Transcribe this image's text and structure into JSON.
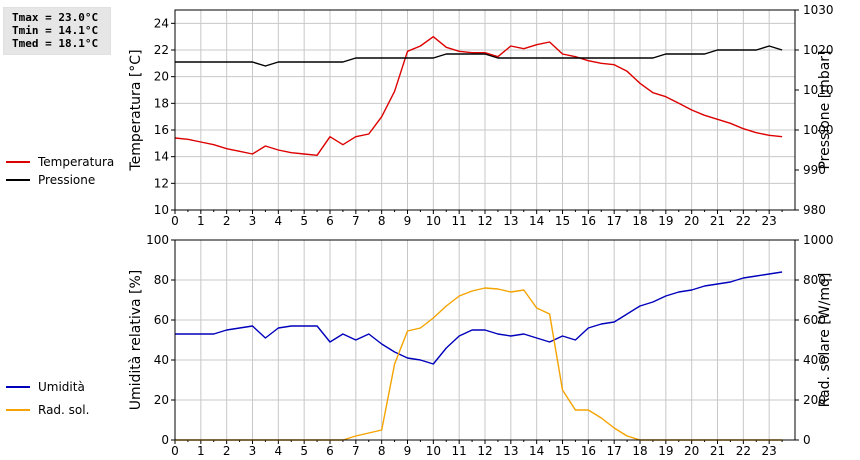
{
  "stats": {
    "tmax": "Tmax = 23.0°C",
    "tmin": "Tmin = 14.1°C",
    "tmed": "Tmed = 18.1°C"
  },
  "colors": {
    "temperatura": "#dd0000",
    "pressione": "#000000",
    "umidita": "#0000bb",
    "radiazione": "#f5a300",
    "grid": "#c8c8c8"
  },
  "chart_data": [
    {
      "type": "line",
      "x_ticks": [
        "0",
        "1",
        "2",
        "3",
        "4",
        "5",
        "6",
        "7",
        "8",
        "9",
        "10",
        "11",
        "12",
        "13",
        "14",
        "15",
        "16",
        "17",
        "18",
        "19",
        "20",
        "21",
        "22",
        "23"
      ],
      "xlim": [
        0,
        24
      ],
      "ylabel_left": "Temperatura [°C]",
      "ylabel_right": "Pressione [mbar]",
      "ylim_left": [
        10,
        25
      ],
      "ylim_right": [
        980,
        1030
      ],
      "yticks_left": [
        "10",
        "12",
        "14",
        "16",
        "18",
        "20",
        "22",
        "24"
      ],
      "yticks_right": [
        "980",
        "990",
        "1000",
        "1010",
        "1020",
        "1030"
      ],
      "grid": true,
      "legend_position": "left",
      "series": [
        {
          "name": "Temperatura",
          "axis": "left",
          "x": [
            0,
            0.5,
            1,
            1.5,
            2,
            2.5,
            3,
            3.5,
            4,
            4.5,
            5,
            5.5,
            6,
            6.5,
            7,
            7.5,
            8,
            8.5,
            9,
            9.5,
            10,
            10.5,
            11,
            11.5,
            12,
            12.5,
            13,
            13.5,
            14,
            14.5,
            15,
            15.5,
            16,
            16.5,
            17,
            17.5,
            18,
            18.5,
            19,
            19.5,
            20,
            20.5,
            21,
            21.5,
            22,
            22.5,
            23,
            23.5
          ],
          "y": [
            15.4,
            15.3,
            15.1,
            14.9,
            14.6,
            14.4,
            14.2,
            14.8,
            14.5,
            14.3,
            14.2,
            14.1,
            15.5,
            14.9,
            15.5,
            15.7,
            17.0,
            18.9,
            21.9,
            22.3,
            23.0,
            22.2,
            21.9,
            21.8,
            21.8,
            21.5,
            22.3,
            22.1,
            22.4,
            22.6,
            21.7,
            21.5,
            21.2,
            21.0,
            20.9,
            20.4,
            19.5,
            18.8,
            18.5,
            18.0,
            17.5,
            17.1,
            16.8,
            16.5,
            16.1,
            15.8,
            15.6,
            15.5
          ]
        },
        {
          "name": "Pressione",
          "axis": "right",
          "x": [
            0,
            0.5,
            1,
            1.5,
            2,
            2.5,
            3,
            3.5,
            4,
            4.5,
            5,
            5.5,
            6,
            6.5,
            7,
            7.5,
            8,
            8.5,
            9,
            9.5,
            10,
            10.5,
            11,
            11.5,
            12,
            12.5,
            13,
            13.5,
            14,
            14.5,
            15,
            15.5,
            16,
            16.5,
            17,
            17.5,
            18,
            18.5,
            19,
            19.5,
            20,
            20.5,
            21,
            21.5,
            22,
            22.5,
            23,
            23.5
          ],
          "y": [
            1017,
            1017,
            1017,
            1017,
            1017,
            1017,
            1017,
            1016,
            1017,
            1017,
            1017,
            1017,
            1017,
            1017,
            1018,
            1018,
            1018,
            1018,
            1018,
            1018,
            1018,
            1019,
            1019,
            1019,
            1019,
            1018,
            1018,
            1018,
            1018,
            1018,
            1018,
            1018,
            1018,
            1018,
            1018,
            1018,
            1018,
            1018,
            1019,
            1019,
            1019,
            1019,
            1020,
            1020,
            1020,
            1020,
            1021,
            1020
          ]
        }
      ]
    },
    {
      "type": "line",
      "x_ticks": [
        "0",
        "1",
        "2",
        "3",
        "4",
        "5",
        "6",
        "7",
        "8",
        "9",
        "10",
        "11",
        "12",
        "13",
        "14",
        "15",
        "16",
        "17",
        "18",
        "19",
        "20",
        "21",
        "22",
        "23"
      ],
      "xlim": [
        0,
        24
      ],
      "ylabel_left": "Umidità relativa [%]",
      "ylabel_right": "Rad. solare [W/mq]",
      "ylim_left": [
        0,
        100
      ],
      "ylim_right": [
        0,
        1000
      ],
      "yticks_left": [
        "0",
        "20",
        "40",
        "60",
        "80",
        "100"
      ],
      "yticks_right": [
        "0",
        "200",
        "400",
        "600",
        "800",
        "1000"
      ],
      "grid": true,
      "legend_position": "left",
      "series": [
        {
          "name": "Umidità",
          "axis": "left",
          "x": [
            0,
            0.5,
            1,
            1.5,
            2,
            2.5,
            3,
            3.5,
            4,
            4.5,
            5,
            5.5,
            6,
            6.5,
            7,
            7.5,
            8,
            8.5,
            9,
            9.5,
            10,
            10.5,
            11,
            11.5,
            12,
            12.5,
            13,
            13.5,
            14,
            14.5,
            15,
            15.5,
            16,
            16.5,
            17,
            17.5,
            18,
            18.5,
            19,
            19.5,
            20,
            20.5,
            21,
            21.5,
            22,
            22.5,
            23,
            23.5
          ],
          "y": [
            53,
            53,
            53,
            53,
            55,
            56,
            57,
            51,
            56,
            57,
            57,
            57,
            49,
            53,
            50,
            53,
            48,
            44,
            41,
            40,
            38,
            46,
            52,
            55,
            55,
            53,
            52,
            53,
            51,
            49,
            52,
            50,
            56,
            58,
            59,
            63,
            67,
            69,
            72,
            74,
            75,
            77,
            78,
            79,
            81,
            82,
            83,
            84
          ]
        },
        {
          "name": "Rad. sol.",
          "axis": "right",
          "x": [
            0,
            0.5,
            1,
            1.5,
            2,
            2.5,
            3,
            3.5,
            4,
            4.5,
            5,
            5.5,
            6,
            6.5,
            7,
            7.5,
            8,
            8.5,
            9,
            9.5,
            10,
            10.5,
            11,
            11.5,
            12,
            12.5,
            13,
            13.5,
            14,
            14.5,
            15,
            15.5,
            16,
            16.5,
            17,
            17.5,
            18,
            18.5,
            19,
            19.5,
            20,
            20.5,
            21,
            21.5,
            22,
            22.5,
            23,
            23.5
          ],
          "y": [
            0,
            0,
            0,
            0,
            0,
            0,
            0,
            0,
            0,
            0,
            0,
            0,
            0,
            0,
            20,
            35,
            50,
            380,
            545,
            560,
            610,
            670,
            720,
            745,
            760,
            755,
            740,
            750,
            660,
            630,
            250,
            150,
            150,
            110,
            60,
            20,
            0,
            0,
            0,
            0,
            0,
            0,
            0,
            0,
            0,
            0,
            0,
            0
          ]
        }
      ]
    }
  ]
}
